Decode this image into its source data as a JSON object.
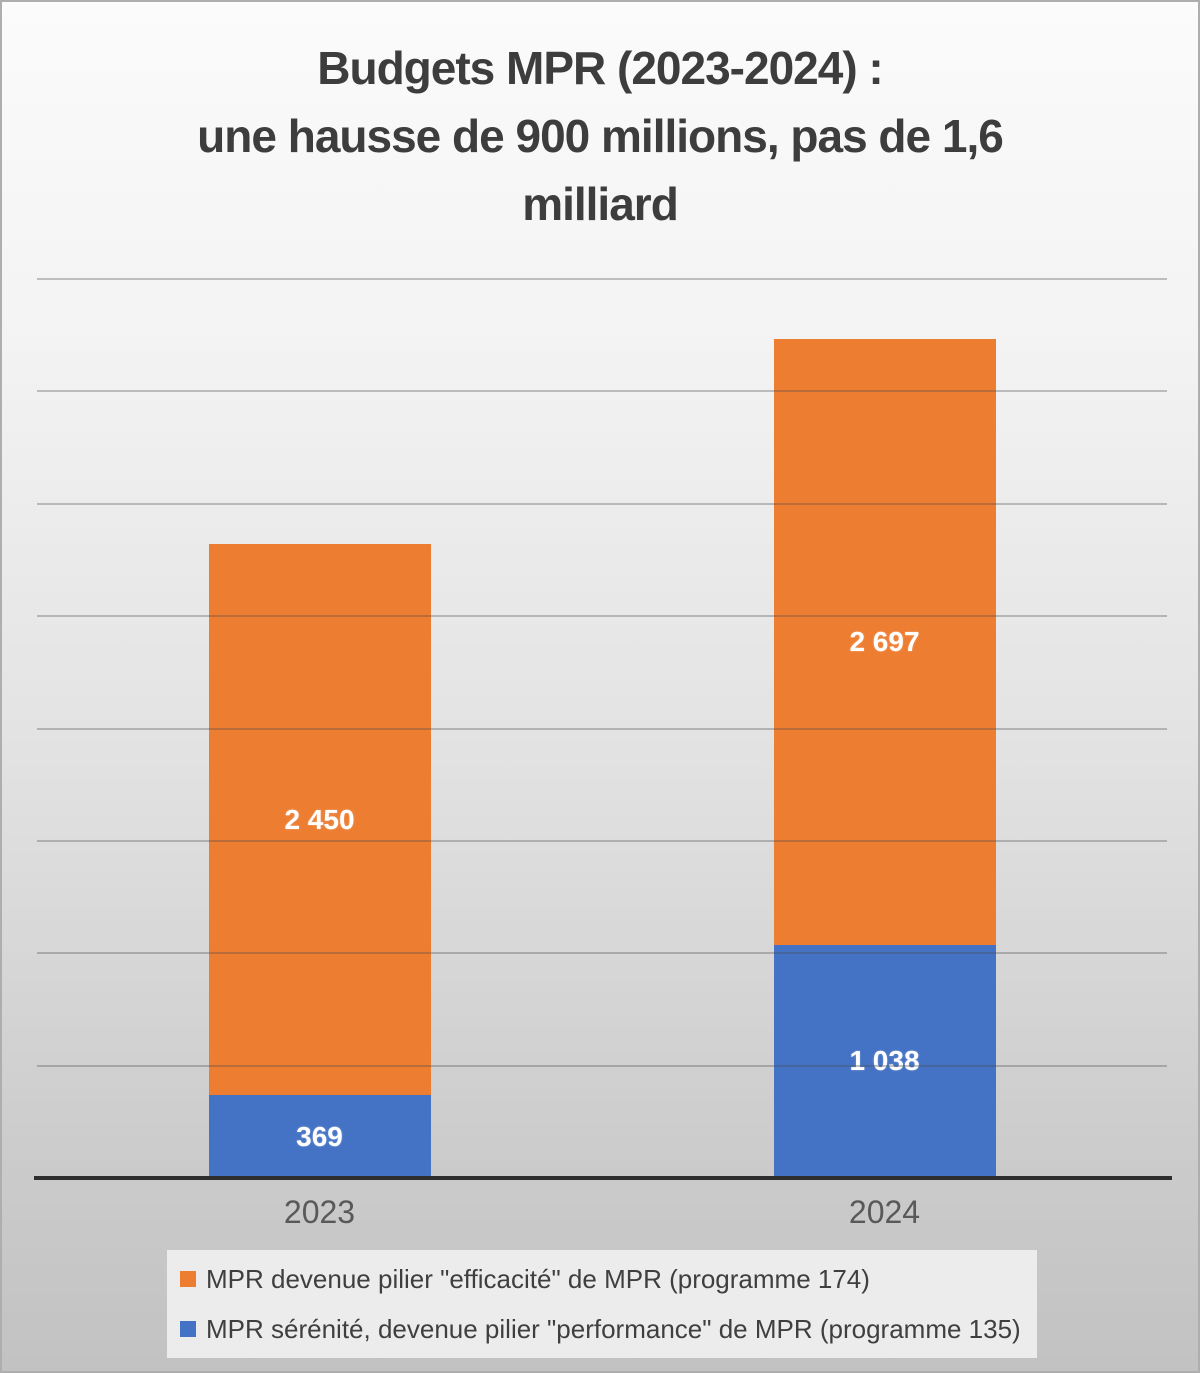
{
  "chart_data": {
    "type": "bar",
    "stacked": true,
    "title": "Budgets MPR (2023-2024) : une hausse de 900 millions, pas de 1,6 milliard",
    "title_lines": [
      "Budgets MPR (2023-2024) :",
      "une hausse de 900 millions, pas de 1,6",
      "milliard"
    ],
    "categories": [
      "2023",
      "2024"
    ],
    "series": [
      {
        "name": "MPR sérénité, devenue pilier \"performance\" de MPR (programme 135)",
        "color": "#4472C4",
        "values": [
          369,
          1038
        ],
        "labels": [
          "369",
          "1 038"
        ]
      },
      {
        "name": "MPR devenue pilier \"efficacité\" de MPR (programme 174)",
        "color": "#ED7D31",
        "values": [
          2450,
          2697
        ],
        "labels": [
          "2 450",
          "2 697"
        ]
      }
    ],
    "totals": [
      2819,
      3735
    ],
    "xlabel": "",
    "ylabel": "",
    "ylim": [
      0,
      4000
    ],
    "gridline_step": 500,
    "grid": true,
    "y_axis_labels_visible": false,
    "legend_position": "bottom",
    "legend_order": [
      1,
      0
    ],
    "value_label_color": "#ffffff",
    "gridline_color": "rgba(75,75,75,0.32)",
    "axis_color": "#2e2e2e",
    "title_color": "#3d3d3d",
    "category_label_color": "#595959"
  }
}
